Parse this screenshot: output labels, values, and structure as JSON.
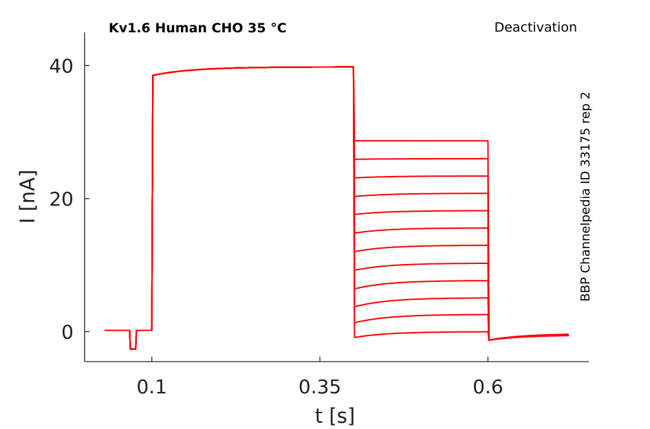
{
  "chart_data": {
    "type": "line",
    "title": "Kv1.6  Human  CHO  35 °C",
    "subtitle": "Deactivation",
    "annotation": "BBP Channelpedia ID 33175 rep 2",
    "xlabel": "t [s]",
    "ylabel": "I [nA]",
    "xlim": [
      0,
      0.75
    ],
    "ylim": [
      -4.5,
      45
    ],
    "xticks": [
      0.1,
      0.35,
      0.6
    ],
    "xtick_labels": [
      "0.1",
      "0.35",
      "0.6"
    ],
    "yticks": [
      0,
      20,
      40
    ],
    "ytick_labels": [
      "0",
      "20",
      "40"
    ],
    "grid": false,
    "color": "#ff0000",
    "protocol": {
      "baseline": 0.2,
      "prepulse_dip": {
        "t_start": 0.067,
        "t_end": 0.076,
        "value": -2.6
      },
      "step_on": 0.1,
      "activation_start": 38.5,
      "activation_peak": 39.8,
      "step_off": 0.4,
      "test_end": 0.6,
      "end": 0.72
    },
    "test_levels": [
      28.7,
      26.0,
      23.4,
      20.8,
      18.2,
      15.6,
      13.0,
      10.3,
      7.7,
      5.1,
      2.6,
      0.0
    ],
    "test_initial": [
      28.7,
      25.9,
      23.1,
      20.3,
      17.6,
      14.8,
      12.0,
      9.2,
      6.4,
      3.7,
      1.3,
      -0.9
    ],
    "tail_initial": -1.3
  }
}
